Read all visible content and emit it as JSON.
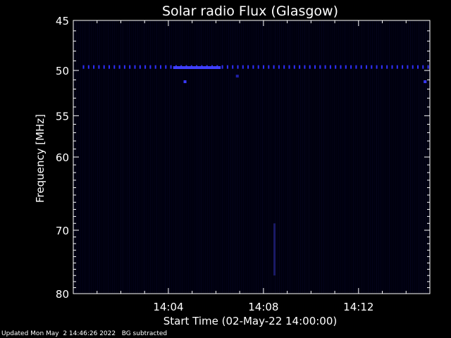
{
  "chart_data": {
    "type": "heatmap",
    "title": "Solar radio Flux (Glasgow)",
    "xlabel": "Start Time (02-May-22 14:00:00)",
    "ylabel": "Frequency [MHz]",
    "x_unit": "minutes after 14:00:00",
    "xlim": [
      0,
      15
    ],
    "ylim": [
      45,
      80
    ],
    "y_reversed": true,
    "y_scale": "log",
    "x_ticks": [
      {
        "value": 4,
        "label": "14:04"
      },
      {
        "value": 8,
        "label": "14:08"
      },
      {
        "value": 12,
        "label": "14:12"
      }
    ],
    "y_ticks": [
      {
        "value": 45,
        "label": "45"
      },
      {
        "value": 50,
        "label": "50"
      },
      {
        "value": 55,
        "label": "55"
      },
      {
        "value": 60,
        "label": "60"
      },
      {
        "value": 70,
        "label": "70"
      },
      {
        "value": 80,
        "label": "80"
      }
    ],
    "background_color": "#00000e",
    "features": [
      {
        "type": "dotted_band",
        "frequency_mhz": 49.6,
        "x_start": 0.4,
        "x_end": 14.9,
        "color": "#3030ff"
      },
      {
        "type": "bright_segment",
        "frequency_mhz": 49.7,
        "x_start": 4.2,
        "x_end": 6.2,
        "color": "#4040ff"
      },
      {
        "type": "spot",
        "x": 4.7,
        "frequency_mhz": 51.2,
        "color": "#3a3aff"
      },
      {
        "type": "spot",
        "x": 14.8,
        "frequency_mhz": 51.2,
        "color": "#3a3aff"
      },
      {
        "type": "spot",
        "x": 6.9,
        "frequency_mhz": 50.6,
        "color": "#2020aa"
      },
      {
        "type": "vertical_streak",
        "x": 8.45,
        "f_from": 69,
        "f_to": 77,
        "color": "#1a1a66"
      }
    ]
  },
  "footer": {
    "updated": "Updated Mon May  2 14:46:26 2022",
    "bg_note": "BG subtracted"
  }
}
